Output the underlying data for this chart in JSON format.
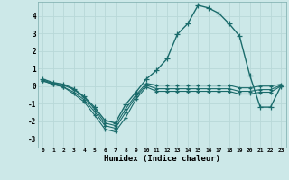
{
  "xlabel": "Humidex (Indice chaleur)",
  "background_color": "#cce8e8",
  "grid_color": "#b8d8d8",
  "line_color": "#1a6b6b",
  "x_ticks": [
    0,
    1,
    2,
    3,
    4,
    5,
    6,
    7,
    8,
    9,
    10,
    11,
    12,
    13,
    14,
    15,
    16,
    17,
    18,
    19,
    20,
    21,
    22,
    23
  ],
  "ylim": [
    -3.5,
    4.8
  ],
  "xlim": [
    -0.5,
    23.5
  ],
  "series1_x": [
    0,
    1,
    2,
    3,
    4,
    5,
    6,
    7,
    8,
    9,
    10,
    11,
    12,
    13,
    14,
    15,
    16,
    17,
    18,
    19,
    20,
    21,
    22,
    23
  ],
  "series1_y": [
    0.3,
    0.1,
    -0.05,
    -0.45,
    -0.9,
    -1.65,
    -2.45,
    -2.6,
    -1.8,
    -0.75,
    -0.05,
    -0.3,
    -0.3,
    -0.3,
    -0.3,
    -0.3,
    -0.3,
    -0.3,
    -0.3,
    -0.45,
    -0.45,
    -0.35,
    -0.35,
    0.0
  ],
  "series2_x": [
    0,
    1,
    2,
    3,
    4,
    5,
    6,
    7,
    8,
    9,
    10,
    11,
    12,
    13,
    14,
    15,
    16,
    17,
    18,
    19,
    20,
    21,
    22,
    23
  ],
  "series2_y": [
    0.3,
    0.1,
    -0.05,
    -0.35,
    -0.78,
    -1.45,
    -2.25,
    -2.4,
    -1.5,
    -0.6,
    0.05,
    -0.15,
    -0.15,
    -0.15,
    -0.15,
    -0.15,
    -0.15,
    -0.15,
    -0.15,
    -0.3,
    -0.3,
    -0.2,
    -0.2,
    0.05
  ],
  "series3_x": [
    0,
    1,
    2,
    3,
    4,
    5,
    6,
    7,
    8,
    9,
    10,
    11,
    12,
    13,
    14,
    15,
    16,
    17,
    18,
    19,
    20,
    21,
    22,
    23
  ],
  "series3_y": [
    0.35,
    0.15,
    0.05,
    -0.2,
    -0.65,
    -1.3,
    -2.1,
    -2.25,
    -1.3,
    -0.5,
    0.15,
    0.05,
    0.05,
    0.05,
    0.05,
    0.05,
    0.05,
    0.05,
    0.05,
    -0.1,
    -0.1,
    0.0,
    0.0,
    0.1
  ],
  "series4_x": [
    0,
    1,
    2,
    3,
    4,
    5,
    6,
    7,
    8,
    9,
    10,
    11,
    12,
    13,
    14,
    15,
    16,
    17,
    18,
    19,
    20,
    21,
    22,
    23
  ],
  "series4_y": [
    0.4,
    0.2,
    0.1,
    -0.15,
    -0.6,
    -1.2,
    -1.95,
    -2.1,
    -1.05,
    -0.35,
    0.4,
    0.9,
    1.55,
    2.95,
    3.55,
    4.6,
    4.45,
    4.15,
    3.55,
    2.85,
    0.6,
    -1.2,
    -1.2,
    0.0
  ]
}
